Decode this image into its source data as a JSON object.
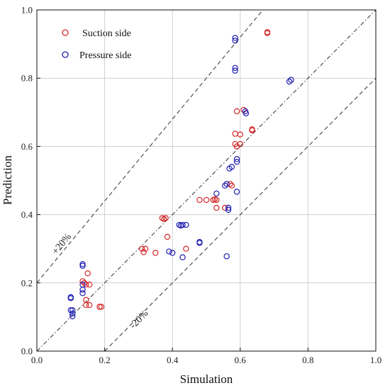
{
  "chart_data": {
    "type": "scatter",
    "title": "",
    "xlabel": "Simulation",
    "ylabel": "Prediction",
    "xlim": [
      0.0,
      1.0
    ],
    "ylim": [
      0.0,
      1.0
    ],
    "x_ticks": [
      "0.0",
      "0.2",
      "0.4",
      "0.6",
      "0.8",
      "1.0"
    ],
    "y_ticks": [
      "0.0",
      "0.2",
      "0.4",
      "0.6",
      "0.8",
      "1.0"
    ],
    "grid": true,
    "legend_position": "top-left",
    "reference_lines": [
      {
        "label": "",
        "slope": 1.0,
        "style": "dash-dot"
      },
      {
        "label": "+20%",
        "slope": 1.2,
        "offset": 0.2,
        "style": "dashed"
      },
      {
        "label": "-20%",
        "slope": 1.0,
        "offset": -0.2,
        "style": "dashed"
      }
    ],
    "series": [
      {
        "name": "Suction side",
        "color": "#d62728",
        "marker": "open-circle",
        "points": [
          [
            0.68,
            0.935
          ],
          [
            0.68,
            0.932
          ],
          [
            0.61,
            0.707
          ],
          [
            0.59,
            0.703
          ],
          [
            0.635,
            0.65
          ],
          [
            0.635,
            0.647
          ],
          [
            0.585,
            0.637
          ],
          [
            0.6,
            0.635
          ],
          [
            0.585,
            0.607
          ],
          [
            0.59,
            0.6
          ],
          [
            0.6,
            0.607
          ],
          [
            0.57,
            0.49
          ],
          [
            0.575,
            0.485
          ],
          [
            0.48,
            0.443
          ],
          [
            0.5,
            0.443
          ],
          [
            0.52,
            0.443
          ],
          [
            0.525,
            0.445
          ],
          [
            0.53,
            0.443
          ],
          [
            0.53,
            0.42
          ],
          [
            0.555,
            0.42
          ],
          [
            0.37,
            0.39
          ],
          [
            0.375,
            0.387
          ],
          [
            0.38,
            0.39
          ],
          [
            0.385,
            0.335
          ],
          [
            0.31,
            0.3
          ],
          [
            0.315,
            0.29
          ],
          [
            0.32,
            0.3
          ],
          [
            0.35,
            0.288
          ],
          [
            0.44,
            0.3
          ],
          [
            0.135,
            0.205
          ],
          [
            0.14,
            0.2
          ],
          [
            0.15,
            0.228
          ],
          [
            0.145,
            0.195
          ],
          [
            0.155,
            0.195
          ],
          [
            0.145,
            0.15
          ],
          [
            0.145,
            0.135
          ],
          [
            0.155,
            0.135
          ],
          [
            0.185,
            0.13
          ],
          [
            0.19,
            0.13
          ]
        ]
      },
      {
        "name": "Pressure side",
        "color": "#1f1fb4",
        "marker": "open-circle",
        "points": [
          [
            0.585,
            0.918
          ],
          [
            0.585,
            0.91
          ],
          [
            0.585,
            0.83
          ],
          [
            0.585,
            0.822
          ],
          [
            0.745,
            0.79
          ],
          [
            0.75,
            0.795
          ],
          [
            0.615,
            0.703
          ],
          [
            0.617,
            0.697
          ],
          [
            0.59,
            0.563
          ],
          [
            0.59,
            0.555
          ],
          [
            0.575,
            0.54
          ],
          [
            0.568,
            0.535
          ],
          [
            0.555,
            0.485
          ],
          [
            0.56,
            0.49
          ],
          [
            0.59,
            0.467
          ],
          [
            0.53,
            0.462
          ],
          [
            0.565,
            0.42
          ],
          [
            0.565,
            0.414
          ],
          [
            0.42,
            0.37
          ],
          [
            0.425,
            0.368
          ],
          [
            0.43,
            0.37
          ],
          [
            0.44,
            0.37
          ],
          [
            0.48,
            0.32
          ],
          [
            0.48,
            0.317
          ],
          [
            0.39,
            0.292
          ],
          [
            0.4,
            0.288
          ],
          [
            0.43,
            0.275
          ],
          [
            0.56,
            0.278
          ],
          [
            0.135,
            0.255
          ],
          [
            0.135,
            0.25
          ],
          [
            0.135,
            0.195
          ],
          [
            0.135,
            0.18
          ],
          [
            0.135,
            0.17
          ],
          [
            0.1,
            0.155
          ],
          [
            0.1,
            0.158
          ],
          [
            0.1,
            0.12
          ],
          [
            0.105,
            0.12
          ],
          [
            0.105,
            0.11
          ],
          [
            0.105,
            0.102
          ]
        ]
      }
    ]
  }
}
